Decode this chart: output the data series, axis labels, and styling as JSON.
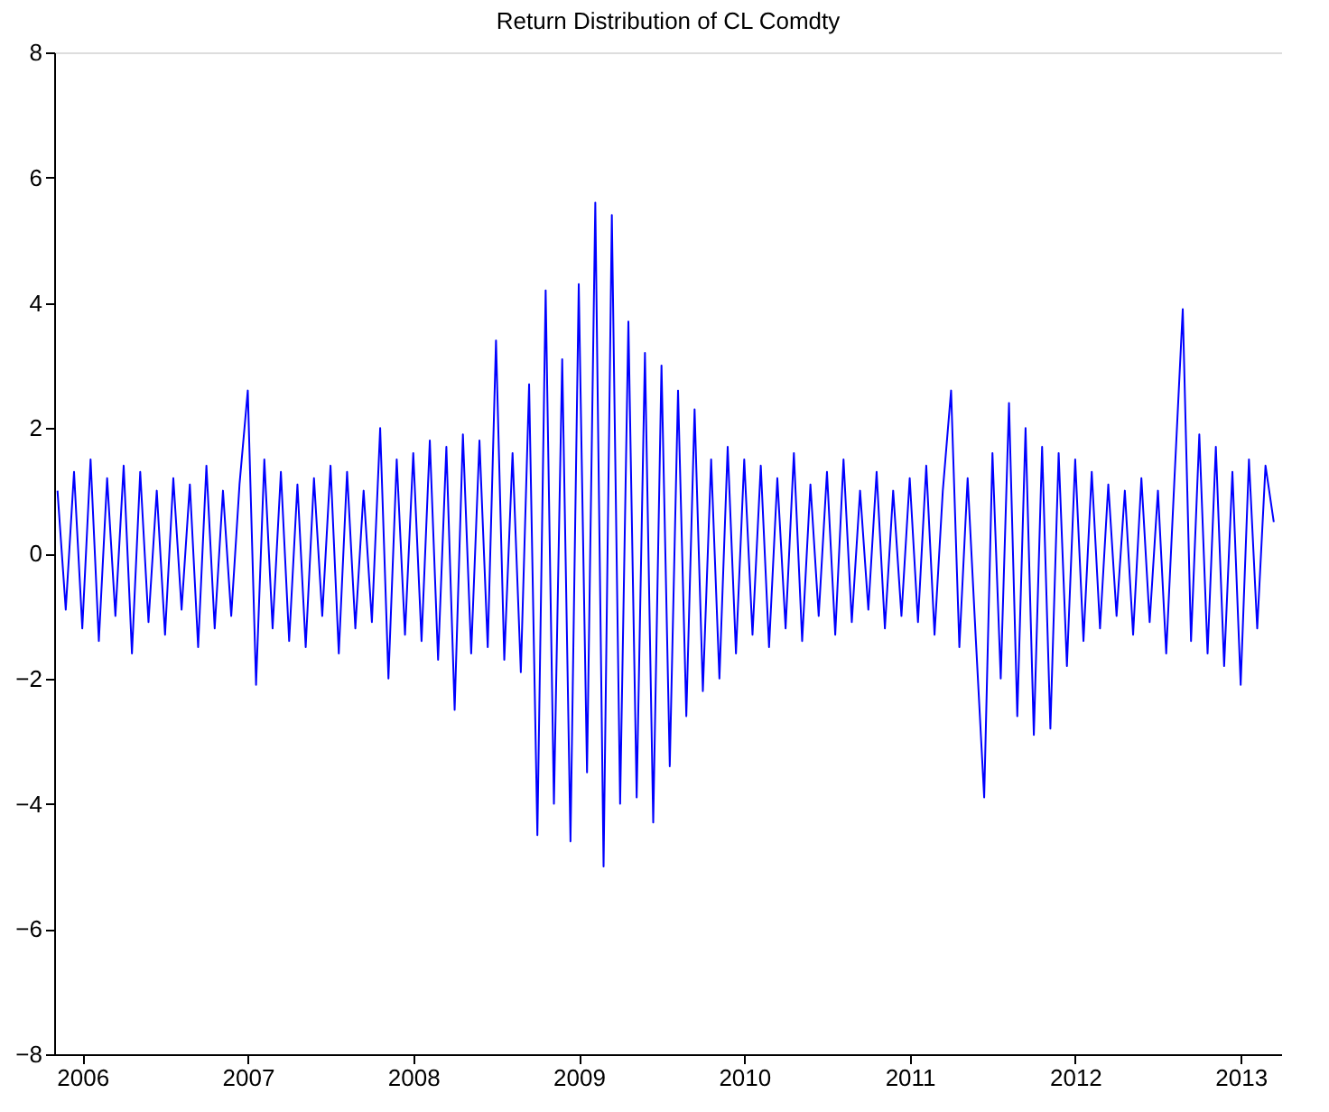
{
  "chart_data": {
    "type": "line",
    "title": "Return Distribution of CL Comdty",
    "x": [
      2005.85,
      2005.9,
      2005.95,
      2006.0,
      2006.05,
      2006.1,
      2006.15,
      2006.2,
      2006.25,
      2006.3,
      2006.35,
      2006.4,
      2006.45,
      2006.5,
      2006.55,
      2006.6,
      2006.65,
      2006.7,
      2006.75,
      2006.8,
      2006.85,
      2006.9,
      2006.95,
      2007.0,
      2007.05,
      2007.1,
      2007.15,
      2007.2,
      2007.25,
      2007.3,
      2007.35,
      2007.4,
      2007.45,
      2007.5,
      2007.55,
      2007.6,
      2007.65,
      2007.7,
      2007.75,
      2007.8,
      2007.85,
      2007.9,
      2007.95,
      2008.0,
      2008.05,
      2008.1,
      2008.15,
      2008.2,
      2008.25,
      2008.3,
      2008.35,
      2008.4,
      2008.45,
      2008.5,
      2008.55,
      2008.6,
      2008.65,
      2008.7,
      2008.75,
      2008.8,
      2008.85,
      2008.9,
      2008.95,
      2009.0,
      2009.05,
      2009.1,
      2009.15,
      2009.2,
      2009.25,
      2009.3,
      2009.35,
      2009.4,
      2009.45,
      2009.5,
      2009.55,
      2009.6,
      2009.65,
      2009.7,
      2009.75,
      2009.8,
      2009.85,
      2009.9,
      2009.95,
      2010.0,
      2010.05,
      2010.1,
      2010.15,
      2010.2,
      2010.25,
      2010.3,
      2010.35,
      2010.4,
      2010.45,
      2010.5,
      2010.55,
      2010.6,
      2010.65,
      2010.7,
      2010.75,
      2010.8,
      2010.85,
      2010.9,
      2010.95,
      2011.0,
      2011.05,
      2011.1,
      2011.15,
      2011.2,
      2011.25,
      2011.3,
      2011.35,
      2011.4,
      2011.45,
      2011.5,
      2011.55,
      2011.6,
      2011.65,
      2011.7,
      2011.75,
      2011.8,
      2011.85,
      2011.9,
      2011.95,
      2012.0,
      2012.05,
      2012.1,
      2012.15,
      2012.2,
      2012.25,
      2012.3,
      2012.35,
      2012.4,
      2012.45,
      2012.5,
      2012.55,
      2012.6,
      2012.65,
      2012.7,
      2012.75,
      2012.8,
      2012.85,
      2012.9,
      2012.95,
      2013.0,
      2013.05,
      2013.1,
      2013.15,
      2013.2
    ],
    "series": [
      {
        "color": "#0000ff",
        "values": [
          1.0,
          -0.9,
          1.3,
          -1.2,
          1.5,
          -1.4,
          1.2,
          -1.0,
          1.4,
          -1.6,
          1.3,
          -1.1,
          1.0,
          -1.3,
          1.2,
          -0.9,
          1.1,
          -1.5,
          1.4,
          -1.2,
          1.0,
          -1.0,
          1.1,
          2.6,
          -2.1,
          1.5,
          -1.2,
          1.3,
          -1.4,
          1.1,
          -1.5,
          1.2,
          -1.0,
          1.4,
          -1.6,
          1.3,
          -1.2,
          1.0,
          -1.1,
          2.0,
          -2.0,
          1.5,
          -1.3,
          1.6,
          -1.4,
          1.8,
          -1.7,
          1.7,
          -2.5,
          1.9,
          -1.6,
          1.8,
          -1.5,
          3.4,
          -1.7,
          1.6,
          -1.9,
          2.7,
          -4.5,
          4.2,
          -4.0,
          3.1,
          -4.6,
          4.3,
          -3.5,
          5.6,
          -5.0,
          5.4,
          -4.0,
          3.7,
          -3.9,
          3.2,
          -4.3,
          3.0,
          -3.4,
          2.6,
          -2.6,
          2.3,
          -2.2,
          1.5,
          -2.0,
          1.7,
          -1.6,
          1.5,
          -1.3,
          1.4,
          -1.5,
          1.2,
          -1.2,
          1.6,
          -1.4,
          1.1,
          -1.0,
          1.3,
          -1.3,
          1.5,
          -1.1,
          1.0,
          -0.9,
          1.3,
          -1.2,
          1.0,
          -1.0,
          1.2,
          -1.1,
          1.4,
          -1.3,
          1.0,
          2.6,
          -1.5,
          1.2,
          -1.4,
          -3.9,
          1.6,
          -2.0,
          2.4,
          -2.6,
          2.0,
          -2.9,
          1.7,
          -2.8,
          1.6,
          -1.8,
          1.5,
          -1.4,
          1.3,
          -1.2,
          1.1,
          -1.0,
          1.0,
          -1.3,
          1.2,
          -1.1,
          1.0,
          -1.6,
          1.2,
          3.9,
          -1.4,
          1.9,
          -1.6,
          1.7,
          -1.8,
          1.3,
          -2.1,
          1.5,
          -1.2,
          1.4,
          0.5
        ]
      }
    ],
    "xlim": [
      2005.83,
      2013.25
    ],
    "xticks": [
      2006,
      2007,
      2008,
      2009,
      2010,
      2011,
      2012,
      2013
    ],
    "ylim": [
      -8,
      8
    ],
    "yticks": [
      -8,
      -6,
      -4,
      -2,
      0,
      2,
      4,
      6,
      8
    ],
    "grid": false
  }
}
